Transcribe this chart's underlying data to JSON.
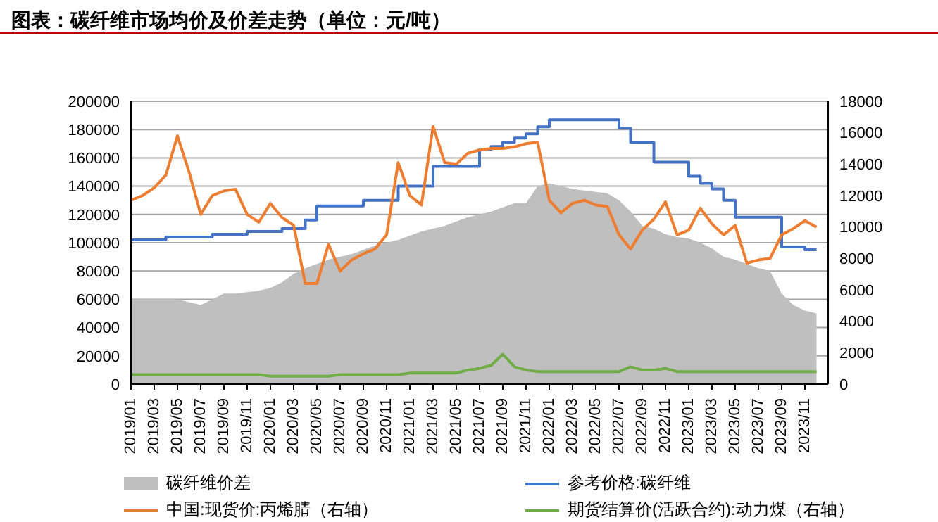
{
  "chart_data": {
    "type": "line",
    "title": "图表：碳纤维市场均价及价差走势（单位：元/吨）",
    "x": [
      "2019-01",
      "2019-02",
      "2019-03",
      "2019-04",
      "2019-05",
      "2019-06",
      "2019-07",
      "2019-08",
      "2019-09",
      "2019-10",
      "2019-11",
      "2019-12",
      "2020-01",
      "2020-02",
      "2020-03",
      "2020-04",
      "2020-05",
      "2020-06",
      "2020-07",
      "2020-08",
      "2020-09",
      "2020-10",
      "2020-11",
      "2020-12",
      "2021-01",
      "2021-02",
      "2021-03",
      "2021-04",
      "2021-05",
      "2021-06",
      "2021-07",
      "2021-08",
      "2021-09",
      "2021-10",
      "2021-11",
      "2021-12",
      "2022-01",
      "2022-02",
      "2022-03",
      "2022-04",
      "2022-05",
      "2022-06",
      "2022-07",
      "2022-08",
      "2022-09",
      "2022-10",
      "2022-11",
      "2022-12",
      "2023-01",
      "2023-02",
      "2023-03",
      "2023-04",
      "2023-05",
      "2023-06",
      "2023-07",
      "2023-08",
      "2023-09",
      "2023-10",
      "2023-11",
      "2023-12"
    ],
    "series": [
      {
        "name": "碳纤维价差",
        "type": "area",
        "color": "#bfbfbf",
        "values": [
          60000,
          60000,
          60000,
          60000,
          60000,
          58000,
          56000,
          60000,
          64000,
          64000,
          65000,
          66000,
          68000,
          72000,
          78000,
          82000,
          85000,
          88000,
          90000,
          92000,
          95000,
          98000,
          100000,
          102000,
          105000,
          108000,
          110000,
          112000,
          115000,
          118000,
          120000,
          122000,
          125000,
          128000,
          128000,
          140000,
          142000,
          140000,
          138000,
          137000,
          136000,
          135000,
          130000,
          122000,
          112000,
          110000,
          106000,
          104000,
          103000,
          100000,
          96000,
          90000,
          88000,
          85000,
          82000,
          80000,
          64000,
          56000,
          52000,
          50000
        ]
      },
      {
        "name": "参考价格:碳纤维",
        "type": "step",
        "color": "#4472c4",
        "values": [
          102000,
          102000,
          102000,
          104000,
          104000,
          104000,
          104000,
          106000,
          106000,
          106000,
          108000,
          108000,
          108000,
          110000,
          110000,
          116000,
          126000,
          126000,
          126000,
          126000,
          130000,
          130000,
          130000,
          140000,
          140000,
          140000,
          154000,
          154000,
          154000,
          154000,
          166000,
          168000,
          171000,
          174000,
          177000,
          182000,
          187000,
          187000,
          187000,
          187000,
          187000,
          187000,
          181000,
          171000,
          171000,
          157000,
          157000,
          157000,
          147000,
          142000,
          138000,
          130000,
          118000,
          118000,
          118000,
          118000,
          97000,
          97000,
          95000,
          95000
        ]
      },
      {
        "name": "中国:现货价:丙烯腈（右轴）",
        "axis": "y2",
        "color": "#ed7d31",
        "values": [
          11700,
          12000,
          12500,
          13300,
          15800,
          13500,
          10800,
          12000,
          12300,
          12400,
          10800,
          10300,
          11500,
          10600,
          10100,
          6400,
          6400,
          8900,
          7200,
          7900,
          8300,
          8600,
          9500,
          14100,
          12000,
          11400,
          16400,
          14100,
          14000,
          14700,
          14900,
          15000,
          15000,
          15100,
          15300,
          15400,
          11700,
          10900,
          11500,
          11700,
          11400,
          11300,
          9500,
          8600,
          9800,
          10500,
          11600,
          9500,
          9800,
          11200,
          10200,
          9500,
          10100,
          7700,
          7900,
          8000,
          9500,
          9900,
          10400,
          10000
        ]
      },
      {
        "name": "期货结算价(活跃合约):动力煤（右轴）",
        "axis": "y2",
        "color": "#70ad47",
        "values": [
          600,
          600,
          600,
          600,
          600,
          600,
          600,
          600,
          600,
          600,
          600,
          600,
          500,
          500,
          500,
          500,
          500,
          500,
          600,
          600,
          600,
          600,
          600,
          600,
          700,
          700,
          700,
          700,
          700,
          900,
          1000,
          1200,
          1900,
          1100,
          900,
          800,
          800,
          800,
          800,
          800,
          800,
          800,
          800,
          1100,
          900,
          900,
          1000,
          800,
          800,
          800,
          800,
          800,
          800,
          800,
          800,
          800,
          800,
          800,
          800,
          800
        ]
      }
    ],
    "xlim": [
      "2019-01",
      "2024-01"
    ],
    "xticks": [
      {
        "value": "2019-01",
        "label": "2019/01"
      },
      {
        "value": "2019-03",
        "label": "2019/03"
      },
      {
        "value": "2019-05",
        "label": "2019/05"
      },
      {
        "value": "2019-07",
        "label": "2019/07"
      },
      {
        "value": "2019-09",
        "label": "2019/09"
      },
      {
        "value": "2019-11",
        "label": "2019/11"
      },
      {
        "value": "2020-01",
        "label": "2020/01"
      },
      {
        "value": "2020-03",
        "label": "2020/03"
      },
      {
        "value": "2020-05",
        "label": "2020/05"
      },
      {
        "value": "2020-07",
        "label": "2020/07"
      },
      {
        "value": "2020-09",
        "label": "2020/09"
      },
      {
        "value": "2020-11",
        "label": "2020/11"
      },
      {
        "value": "2021-01",
        "label": "2021/01"
      },
      {
        "value": "2021-03",
        "label": "2021/03"
      },
      {
        "value": "2021-05",
        "label": "2021/05"
      },
      {
        "value": "2021-07",
        "label": "2021/07"
      },
      {
        "value": "2021-09",
        "label": "2021/09"
      },
      {
        "value": "2021-11",
        "label": "2021/11"
      },
      {
        "value": "2022-01",
        "label": "2022/01"
      },
      {
        "value": "2022-03",
        "label": "2022/03"
      },
      {
        "value": "2022-05",
        "label": "2022/05"
      },
      {
        "value": "2022-07",
        "label": "2022/07"
      },
      {
        "value": "2022-09",
        "label": "2022/09"
      },
      {
        "value": "2022-11",
        "label": "2022/11"
      },
      {
        "value": "2023-01",
        "label": "2023/01"
      },
      {
        "value": "2023-03",
        "label": "2023/03"
      },
      {
        "value": "2023-05",
        "label": "2023/05"
      },
      {
        "value": "2023-07",
        "label": "2023/07"
      },
      {
        "value": "2023-09",
        "label": "2023/09"
      },
      {
        "value": "2023-11",
        "label": "2023/11"
      }
    ],
    "ylim": [
      0,
      200000
    ],
    "yticks": [
      0,
      20000,
      40000,
      60000,
      80000,
      100000,
      120000,
      140000,
      160000,
      180000,
      200000
    ],
    "y2lim": [
      0,
      18000
    ],
    "y2ticks": [
      0,
      2000,
      4000,
      6000,
      8000,
      10000,
      12000,
      14000,
      16000,
      18000
    ],
    "grid": "y",
    "legend": "bottom"
  }
}
